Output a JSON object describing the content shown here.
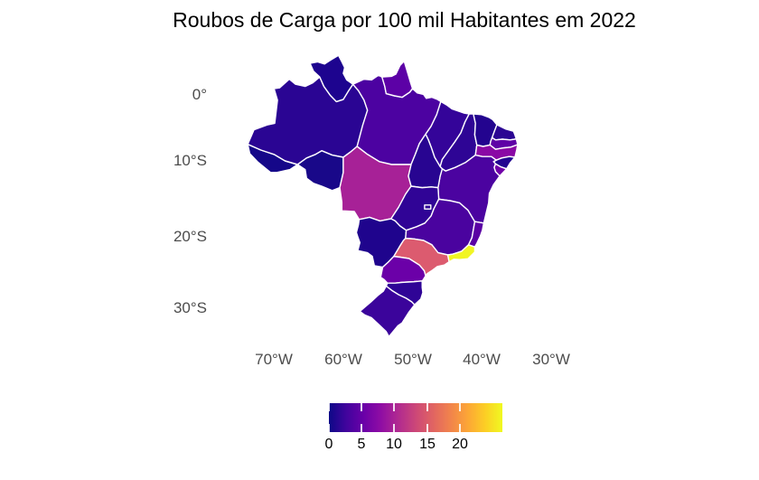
{
  "title": "Roubos de Carga por 100 mil Habitantes em 2022",
  "axes": {
    "y_ticks": [
      "0°",
      "10°S",
      "20°S",
      "30°S"
    ],
    "x_ticks": [
      "70°W",
      "60°W",
      "50°W",
      "40°W",
      "30°W"
    ]
  },
  "legend": {
    "tick_labels": [
      "0",
      "5",
      "10",
      "15",
      "20"
    ],
    "tick_values": [
      0,
      5,
      10,
      15,
      20
    ],
    "min": 0,
    "max": 26.5,
    "gradient_stops": [
      "#0D0887",
      "#41049D",
      "#6A00A8",
      "#8F0DA4",
      "#B12A90",
      "#CC4778",
      "#E16462",
      "#F1834C",
      "#FCA636",
      "#FCCE25",
      "#F0F921"
    ]
  },
  "chart_data": {
    "type": "choropleth_map",
    "region": "Brazil - states",
    "title": "Roubos de Carga por 100 mil Habitantes em 2022",
    "colorscale": "plasma",
    "scale_range": [
      0,
      26.5
    ],
    "values_estimated_from_color": true,
    "states": [
      {
        "id": "AC",
        "name": "Acre",
        "value": 0.4,
        "color": "#150789"
      },
      {
        "id": "AM",
        "name": "Amazonas",
        "value": 1.4,
        "color": "#2A0593"
      },
      {
        "id": "RR",
        "name": "Roraima",
        "value": 0.7,
        "color": "#1D048F"
      },
      {
        "id": "RO",
        "name": "Rondônia",
        "value": 0.5,
        "color": "#190889"
      },
      {
        "id": "PA",
        "name": "Pará",
        "value": 3.3,
        "color": "#4C02A1"
      },
      {
        "id": "AP",
        "name": "Amapá",
        "value": 4.3,
        "color": "#5C01A6"
      },
      {
        "id": "MA",
        "name": "Maranhão",
        "value": 1.8,
        "color": "#340499"
      },
      {
        "id": "PI",
        "name": "Piauí",
        "value": 1.5,
        "color": "#2E0595"
      },
      {
        "id": "CE",
        "name": "Ceará",
        "value": 1.0,
        "color": "#23048F"
      },
      {
        "id": "RN",
        "name": "Rio Grande do Norte",
        "value": 1.4,
        "color": "#2B0593"
      },
      {
        "id": "PB",
        "name": "Paraíba",
        "value": 4.5,
        "color": "#5F01A6"
      },
      {
        "id": "PE",
        "name": "Pernambuco",
        "value": 7.3,
        "color": "#8A09A5"
      },
      {
        "id": "AL",
        "name": "Alagoas",
        "value": 0.9,
        "color": "#220490"
      },
      {
        "id": "SE",
        "name": "Sergipe",
        "value": 5.6,
        "color": "#7100A8"
      },
      {
        "id": "BA",
        "name": "Bahia",
        "value": 3.2,
        "color": "#4B03A0"
      },
      {
        "id": "TO",
        "name": "Tocantins",
        "value": 1.2,
        "color": "#280591"
      },
      {
        "id": "MT",
        "name": "Mato Grosso",
        "value": 9.6,
        "color": "#A72197"
      },
      {
        "id": "GO",
        "name": "Goiás",
        "value": 1.6,
        "color": "#300496"
      },
      {
        "id": "DF",
        "name": "Distrito Federal",
        "value": 1.6,
        "color": "#300496"
      },
      {
        "id": "MS",
        "name": "Mato Grosso do Sul",
        "value": 0.9,
        "color": "#1F048D"
      },
      {
        "id": "MG",
        "name": "Minas Gerais",
        "value": 3.1,
        "color": "#4A039F"
      },
      {
        "id": "ES",
        "name": "Espírito Santo",
        "value": 4.1,
        "color": "#5A01A4"
      },
      {
        "id": "SP",
        "name": "São Paulo",
        "value": 14.8,
        "color": "#DC5B6F"
      },
      {
        "id": "RJ",
        "name": "Rio de Janeiro",
        "value": 26.5,
        "color": "#F1F524"
      },
      {
        "id": "PR",
        "name": "Paraná",
        "value": 5.2,
        "color": "#6B00A8"
      },
      {
        "id": "SC",
        "name": "Santa Catarina",
        "value": 1.5,
        "color": "#2F0496"
      },
      {
        "id": "RS",
        "name": "Rio Grande do Sul",
        "value": 2.3,
        "color": "#3B049B"
      }
    ]
  }
}
